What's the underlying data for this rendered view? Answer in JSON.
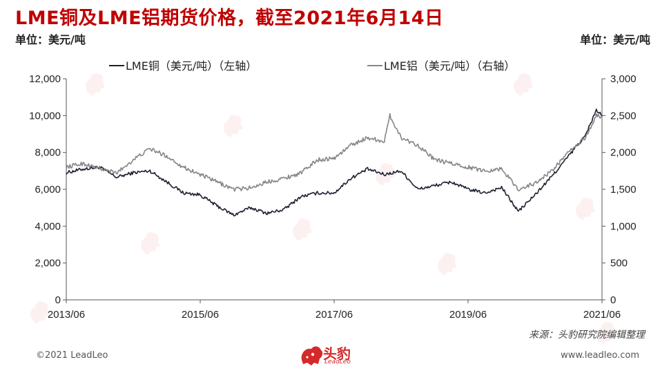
{
  "title": "LME铜及LME铝期货价格，截至2021年6月14日",
  "unit_left": "单位：美元/吨",
  "unit_right": "单位：美元/吨",
  "source": "来源：头豹研究院编辑整理",
  "footer": {
    "copyright": "©2021 LeadLeo",
    "website": "www.leadleo.com"
  },
  "logo": {
    "name": "头豹",
    "sub": "LeadLeo",
    "color": "#d42a2a"
  },
  "watermark_icon": "leopard-logo-icon",
  "chart_data": {
    "type": "line",
    "title": "LME铜及LME铝期货价格，截至2021年6月14日",
    "x_ticks": [
      "2013/06",
      "2015/06",
      "2017/06",
      "2019/06",
      "2021/06"
    ],
    "x_range": [
      "2013/06",
      "2021/06"
    ],
    "y_left": {
      "min": 0,
      "max": 12000,
      "ticks": [
        "0",
        "2,000",
        "4,000",
        "6,000",
        "8,000",
        "10,000",
        "12,000"
      ]
    },
    "y_right": {
      "min": 0,
      "max": 3000,
      "ticks": [
        "0",
        "500",
        "1,000",
        "1,500",
        "2,000",
        "2,500",
        "3,000"
      ]
    },
    "legend_position": "top",
    "grid": false,
    "series": [
      {
        "name": "LME铜（美元/吨）（左轴）",
        "axis": "left",
        "color": "#1c2130",
        "x": [
          "2013/06",
          "2013/09",
          "2013/12",
          "2014/03",
          "2014/06",
          "2014/09",
          "2014/12",
          "2015/03",
          "2015/06",
          "2015/09",
          "2015/12",
          "2016/03",
          "2016/06",
          "2016/09",
          "2016/12",
          "2017/03",
          "2017/06",
          "2017/09",
          "2017/12",
          "2018/03",
          "2018/06",
          "2018/09",
          "2018/12",
          "2019/03",
          "2019/06",
          "2019/09",
          "2019/12",
          "2020/03",
          "2020/06",
          "2020/09",
          "2020/12",
          "2021/03",
          "2021/05",
          "2021/06"
        ],
        "values": [
          6900,
          7100,
          7200,
          6650,
          6900,
          7000,
          6400,
          5800,
          5700,
          5100,
          4600,
          5000,
          4700,
          4900,
          5600,
          5800,
          5800,
          6600,
          7100,
          6800,
          7000,
          6000,
          6200,
          6400,
          6000,
          5800,
          6100,
          4800,
          5700,
          6700,
          7800,
          8900,
          10300,
          10000
        ]
      },
      {
        "name": "LME铝（美元/吨）（右轴）",
        "axis": "right",
        "color": "#858585",
        "x": [
          "2013/06",
          "2013/09",
          "2013/12",
          "2014/03",
          "2014/06",
          "2014/09",
          "2014/12",
          "2015/03",
          "2015/06",
          "2015/09",
          "2015/12",
          "2016/03",
          "2016/06",
          "2016/09",
          "2016/12",
          "2017/03",
          "2017/06",
          "2017/09",
          "2017/12",
          "2018/03",
          "2018/04",
          "2018/06",
          "2018/09",
          "2018/12",
          "2019/03",
          "2019/06",
          "2019/09",
          "2019/12",
          "2020/03",
          "2020/06",
          "2020/09",
          "2020/12",
          "2021/03",
          "2021/05",
          "2021/06"
        ],
        "values": [
          1800,
          1850,
          1780,
          1720,
          1900,
          2050,
          1950,
          1800,
          1700,
          1600,
          1500,
          1520,
          1600,
          1650,
          1720,
          1900,
          1920,
          2100,
          2200,
          2150,
          2500,
          2200,
          2100,
          1900,
          1850,
          1800,
          1750,
          1780,
          1500,
          1580,
          1750,
          2000,
          2200,
          2500,
          2480
        ]
      }
    ]
  }
}
